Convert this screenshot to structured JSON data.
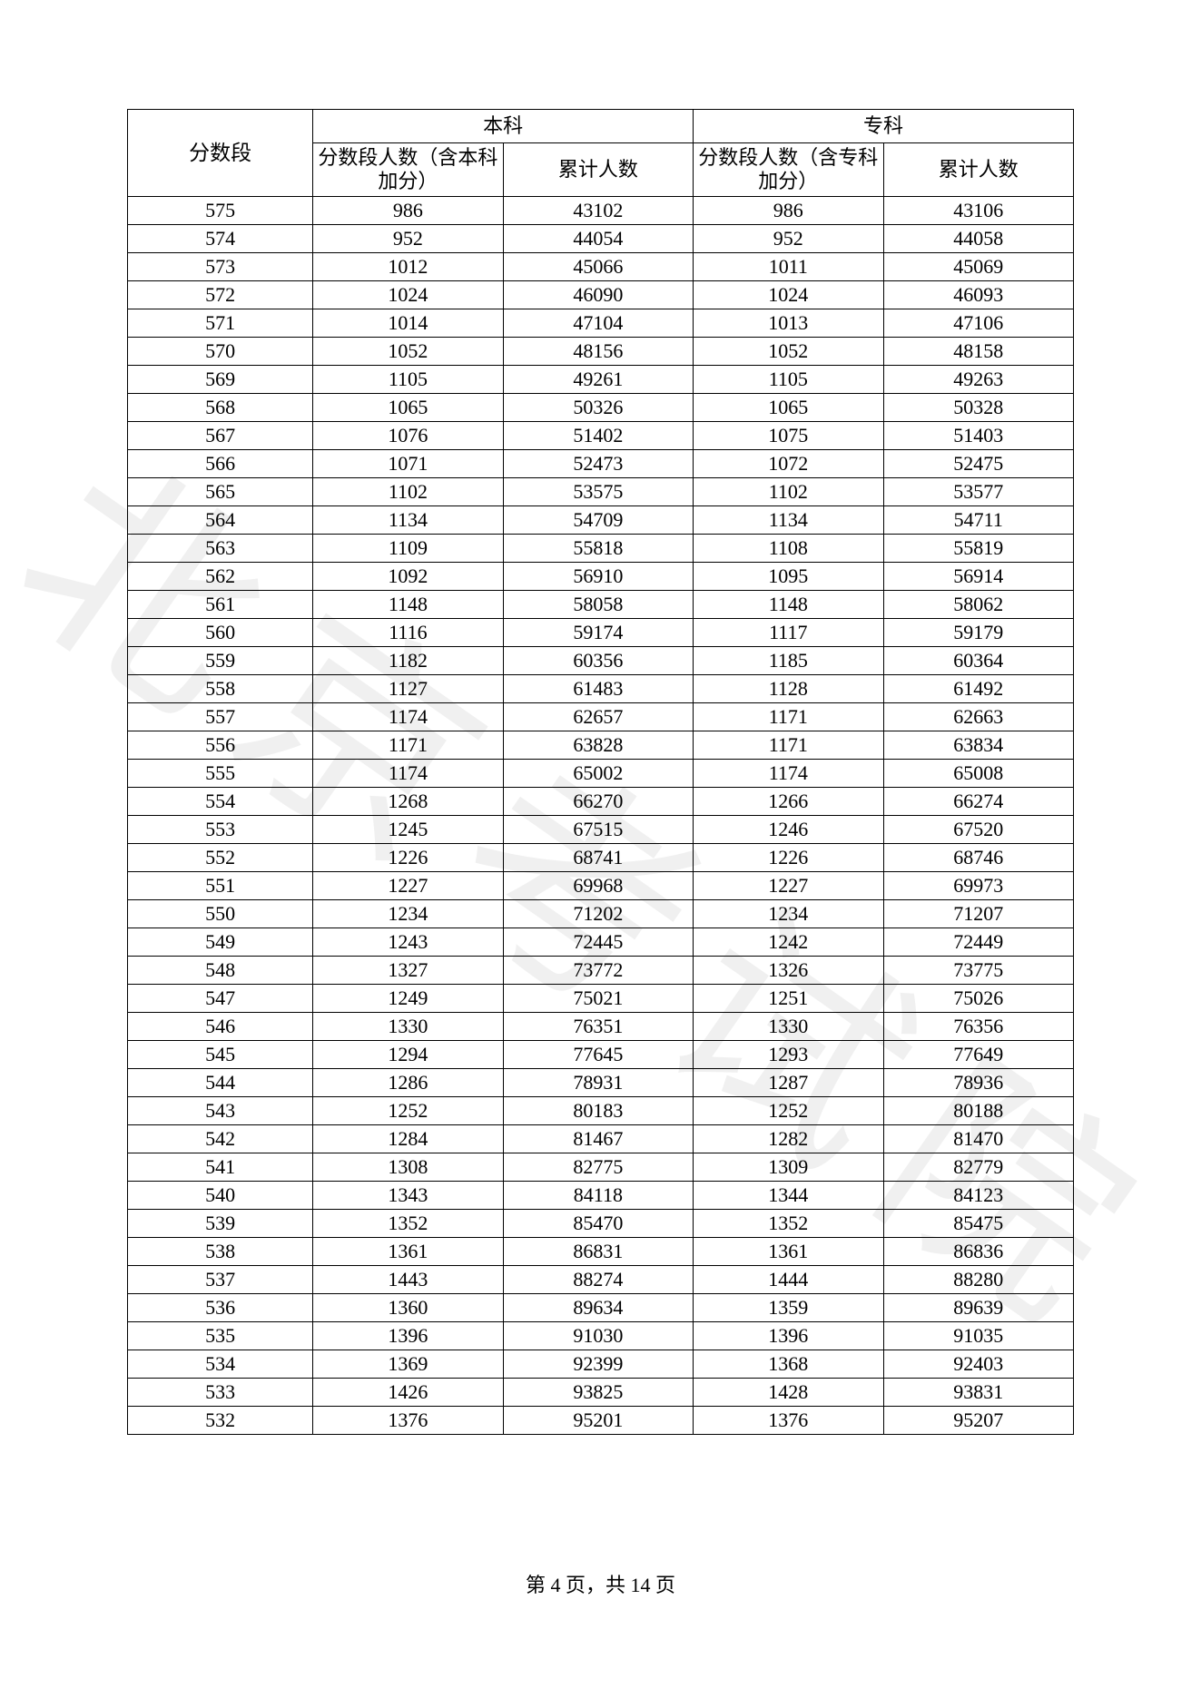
{
  "watermark_text": "北京考试院",
  "footer": {
    "prefix": "第 ",
    "page": "4",
    "mid": " 页，共 ",
    "total": "14",
    "suffix": " 页"
  },
  "headers": {
    "score": "分数段",
    "benke": "本科",
    "zhuanke": "专科",
    "benke_count": "分数段人数（含本科加分）",
    "benke_cum": "累计人数",
    "zhuanke_count": "分数段人数（含专科加分）",
    "zhuanke_cum": "累计人数"
  },
  "table": {
    "columns": [
      "score",
      "benke_count",
      "benke_cum",
      "zhuanke_count",
      "zhuanke_cum"
    ],
    "column_align": [
      "center",
      "center",
      "center",
      "center",
      "center"
    ],
    "border_color": "#000000",
    "text_color": "#000000",
    "font_size_pt": 11,
    "header_font_size_pt": 11
  },
  "rows": [
    {
      "score": "575",
      "bc": "986",
      "bm": "43102",
      "zc": "986",
      "zm": "43106"
    },
    {
      "score": "574",
      "bc": "952",
      "bm": "44054",
      "zc": "952",
      "zm": "44058"
    },
    {
      "score": "573",
      "bc": "1012",
      "bm": "45066",
      "zc": "1011",
      "zm": "45069"
    },
    {
      "score": "572",
      "bc": "1024",
      "bm": "46090",
      "zc": "1024",
      "zm": "46093"
    },
    {
      "score": "571",
      "bc": "1014",
      "bm": "47104",
      "zc": "1013",
      "zm": "47106"
    },
    {
      "score": "570",
      "bc": "1052",
      "bm": "48156",
      "zc": "1052",
      "zm": "48158"
    },
    {
      "score": "569",
      "bc": "1105",
      "bm": "49261",
      "zc": "1105",
      "zm": "49263"
    },
    {
      "score": "568",
      "bc": "1065",
      "bm": "50326",
      "zc": "1065",
      "zm": "50328"
    },
    {
      "score": "567",
      "bc": "1076",
      "bm": "51402",
      "zc": "1075",
      "zm": "51403"
    },
    {
      "score": "566",
      "bc": "1071",
      "bm": "52473",
      "zc": "1072",
      "zm": "52475"
    },
    {
      "score": "565",
      "bc": "1102",
      "bm": "53575",
      "zc": "1102",
      "zm": "53577"
    },
    {
      "score": "564",
      "bc": "1134",
      "bm": "54709",
      "zc": "1134",
      "zm": "54711"
    },
    {
      "score": "563",
      "bc": "1109",
      "bm": "55818",
      "zc": "1108",
      "zm": "55819"
    },
    {
      "score": "562",
      "bc": "1092",
      "bm": "56910",
      "zc": "1095",
      "zm": "56914"
    },
    {
      "score": "561",
      "bc": "1148",
      "bm": "58058",
      "zc": "1148",
      "zm": "58062"
    },
    {
      "score": "560",
      "bc": "1116",
      "bm": "59174",
      "zc": "1117",
      "zm": "59179"
    },
    {
      "score": "559",
      "bc": "1182",
      "bm": "60356",
      "zc": "1185",
      "zm": "60364"
    },
    {
      "score": "558",
      "bc": "1127",
      "bm": "61483",
      "zc": "1128",
      "zm": "61492"
    },
    {
      "score": "557",
      "bc": "1174",
      "bm": "62657",
      "zc": "1171",
      "zm": "62663"
    },
    {
      "score": "556",
      "bc": "1171",
      "bm": "63828",
      "zc": "1171",
      "zm": "63834"
    },
    {
      "score": "555",
      "bc": "1174",
      "bm": "65002",
      "zc": "1174",
      "zm": "65008"
    },
    {
      "score": "554",
      "bc": "1268",
      "bm": "66270",
      "zc": "1266",
      "zm": "66274"
    },
    {
      "score": "553",
      "bc": "1245",
      "bm": "67515",
      "zc": "1246",
      "zm": "67520"
    },
    {
      "score": "552",
      "bc": "1226",
      "bm": "68741",
      "zc": "1226",
      "zm": "68746"
    },
    {
      "score": "551",
      "bc": "1227",
      "bm": "69968",
      "zc": "1227",
      "zm": "69973"
    },
    {
      "score": "550",
      "bc": "1234",
      "bm": "71202",
      "zc": "1234",
      "zm": "71207"
    },
    {
      "score": "549",
      "bc": "1243",
      "bm": "72445",
      "zc": "1242",
      "zm": "72449"
    },
    {
      "score": "548",
      "bc": "1327",
      "bm": "73772",
      "zc": "1326",
      "zm": "73775"
    },
    {
      "score": "547",
      "bc": "1249",
      "bm": "75021",
      "zc": "1251",
      "zm": "75026"
    },
    {
      "score": "546",
      "bc": "1330",
      "bm": "76351",
      "zc": "1330",
      "zm": "76356"
    },
    {
      "score": "545",
      "bc": "1294",
      "bm": "77645",
      "zc": "1293",
      "zm": "77649"
    },
    {
      "score": "544",
      "bc": "1286",
      "bm": "78931",
      "zc": "1287",
      "zm": "78936"
    },
    {
      "score": "543",
      "bc": "1252",
      "bm": "80183",
      "zc": "1252",
      "zm": "80188"
    },
    {
      "score": "542",
      "bc": "1284",
      "bm": "81467",
      "zc": "1282",
      "zm": "81470"
    },
    {
      "score": "541",
      "bc": "1308",
      "bm": "82775",
      "zc": "1309",
      "zm": "82779"
    },
    {
      "score": "540",
      "bc": "1343",
      "bm": "84118",
      "zc": "1344",
      "zm": "84123"
    },
    {
      "score": "539",
      "bc": "1352",
      "bm": "85470",
      "zc": "1352",
      "zm": "85475"
    },
    {
      "score": "538",
      "bc": "1361",
      "bm": "86831",
      "zc": "1361",
      "zm": "86836"
    },
    {
      "score": "537",
      "bc": "1443",
      "bm": "88274",
      "zc": "1444",
      "zm": "88280"
    },
    {
      "score": "536",
      "bc": "1360",
      "bm": "89634",
      "zc": "1359",
      "zm": "89639"
    },
    {
      "score": "535",
      "bc": "1396",
      "bm": "91030",
      "zc": "1396",
      "zm": "91035"
    },
    {
      "score": "534",
      "bc": "1369",
      "bm": "92399",
      "zc": "1368",
      "zm": "92403"
    },
    {
      "score": "533",
      "bc": "1426",
      "bm": "93825",
      "zc": "1428",
      "zm": "93831"
    },
    {
      "score": "532",
      "bc": "1376",
      "bm": "95201",
      "zc": "1376",
      "zm": "95207"
    }
  ]
}
